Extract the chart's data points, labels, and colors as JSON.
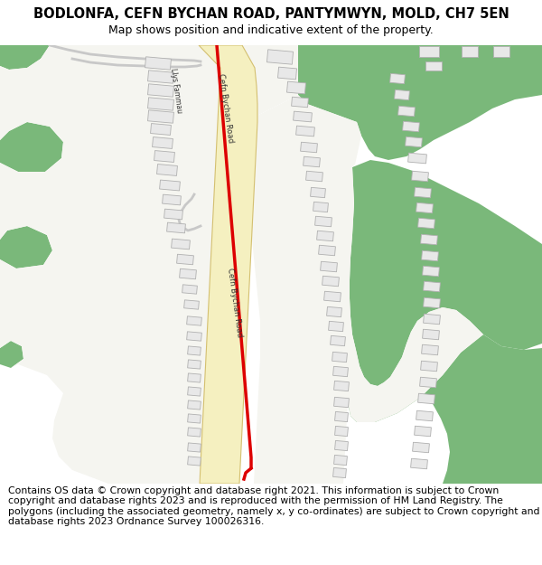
{
  "title": "BODLONFA, CEFN BYCHAN ROAD, PANTYMWYN, MOLD, CH7 5EN",
  "subtitle": "Map shows position and indicative extent of the property.",
  "footer": "Contains OS data © Crown copyright and database right 2021. This information is subject to Crown copyright and database rights 2023 and is reproduced with the permission of HM Land Registry. The polygons (including the associated geometry, namely x, y co-ordinates) are subject to Crown copyright and database rights 2023 Ordnance Survey 100026316.",
  "bg_color": "#ffffff",
  "map_bg_color": "#f5f5f0",
  "green_color": "#7ab87a",
  "road_fill_color": "#f5f0c0",
  "road_border_color": "#d4c070",
  "building_color": "#e8e8e8",
  "building_border_color": "#b0b0b0",
  "property_color": "#dd0000",
  "title_fontsize": 10.5,
  "subtitle_fontsize": 9,
  "footer_fontsize": 7.8
}
